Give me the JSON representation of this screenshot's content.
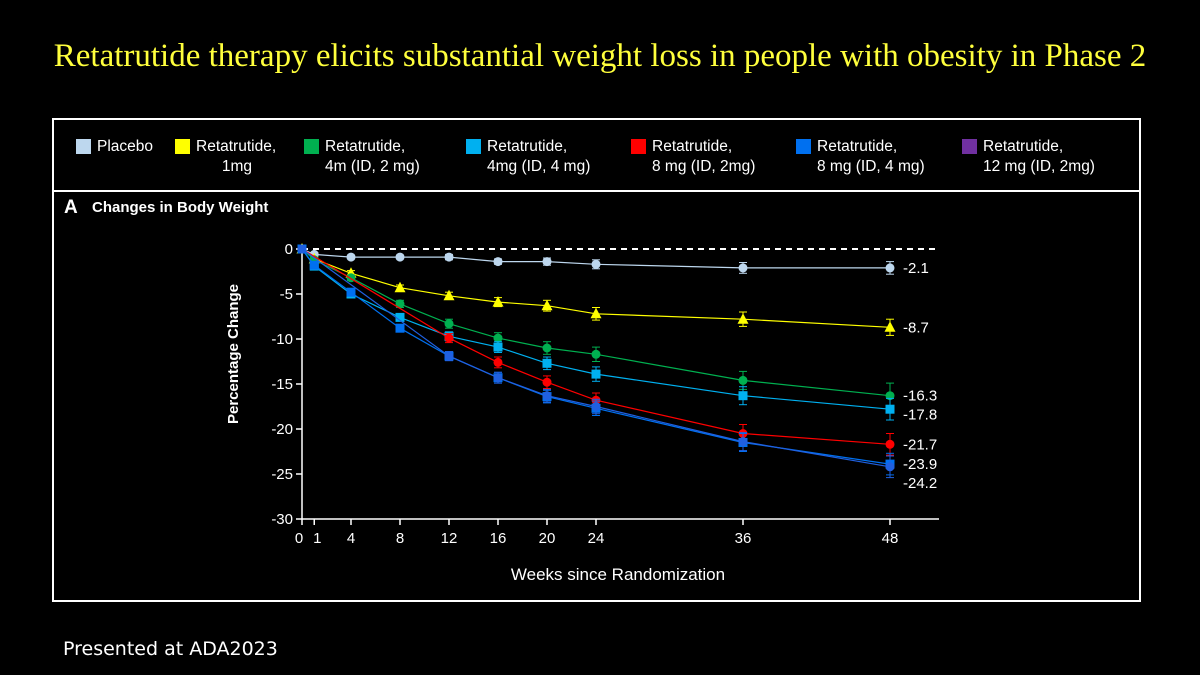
{
  "page": {
    "title": "Retatrutide therapy elicits substantial weight loss in people with obesity in Phase 2",
    "footer": "Presented at ADA2023"
  },
  "legend": [
    {
      "label": "Placebo",
      "color": "#bdd7ee"
    },
    {
      "label": "Retatrutide,\n      1mg",
      "color": "#ffff00"
    },
    {
      "label": "Retatrutide,\n4m (ID, 2 mg)",
      "color": "#00b050"
    },
    {
      "label": "Retatrutide,\n4mg (ID, 4 mg)",
      "color": "#00b0f0"
    },
    {
      "label": "Retatrutide,\n8 mg (ID, 2mg)",
      "color": "#ff0000"
    },
    {
      "label": "Retatrutide,\n8 mg (ID, 4 mg)",
      "color": "#0070f0"
    },
    {
      "label": "Retatrutide,\n12 mg (ID, 2mg)",
      "color": "#7030a0"
    }
  ],
  "chart_data": {
    "type": "line",
    "panel_letter": "A",
    "title": "Changes in Body Weight",
    "xlabel": "Weeks since Randomization",
    "ylabel": "Percentage Change",
    "xlim": [
      0,
      52
    ],
    "ylim": [
      -30,
      0
    ],
    "xticks": [
      0,
      1,
      4,
      8,
      12,
      16,
      20,
      24,
      36,
      48
    ],
    "xtick_labels": [
      "0",
      "1",
      "4",
      "8",
      "12",
      "16",
      "20",
      "24",
      "36",
      "48"
    ],
    "yticks": [
      0,
      -5,
      -10,
      -15,
      -20,
      -25,
      -30
    ],
    "ytick_labels": [
      "0",
      "-5",
      "-10",
      "-15",
      "-20",
      "-25",
      "-30"
    ],
    "reference_line": 0,
    "series": [
      {
        "name": "Placebo",
        "color": "#bdd7ee",
        "marker": "circle",
        "x": [
          0,
          1,
          4,
          8,
          12,
          16,
          20,
          24,
          36,
          48
        ],
        "values": [
          0,
          -0.6,
          -0.9,
          -0.9,
          -0.9,
          -1.4,
          -1.4,
          -1.7,
          -2.1,
          -2.1
        ],
        "err": [
          0,
          0.2,
          0.2,
          0.2,
          0.3,
          0.3,
          0.4,
          0.5,
          0.6,
          0.7
        ],
        "end_label": "-2.1"
      },
      {
        "name": "Retatrutide, 1mg",
        "color": "#ffff00",
        "marker": "triangle",
        "x": [
          0,
          1,
          4,
          8,
          12,
          16,
          20,
          24,
          36,
          48
        ],
        "values": [
          0,
          -1.1,
          -2.7,
          -4.3,
          -5.2,
          -5.9,
          -6.3,
          -7.2,
          -7.8,
          -8.7
        ],
        "err": [
          0,
          0.2,
          0.3,
          0.3,
          0.4,
          0.5,
          0.6,
          0.7,
          0.8,
          0.9
        ],
        "end_label": "-8.7"
      },
      {
        "name": "Retatrutide, 4m (ID, 2 mg)",
        "color": "#00b050",
        "marker": "circle",
        "x": [
          0,
          1,
          4,
          8,
          12,
          16,
          20,
          24,
          36,
          48
        ],
        "values": [
          0,
          -1.2,
          -3.2,
          -6.1,
          -8.3,
          -9.9,
          -11.0,
          -11.7,
          -14.6,
          -16.3
        ],
        "err": [
          0,
          0.2,
          0.3,
          0.4,
          0.5,
          0.6,
          0.7,
          0.8,
          1.0,
          1.4
        ],
        "end_label": "-16.3"
      },
      {
        "name": "Retatrutide, 4mg (ID, 4 mg)",
        "color": "#00b0f0",
        "marker": "square",
        "x": [
          0,
          1,
          4,
          8,
          12,
          16,
          20,
          24,
          36,
          48
        ],
        "values": [
          0,
          -1.9,
          -5.0,
          -7.6,
          -9.7,
          -10.9,
          -12.7,
          -13.9,
          -16.3,
          -17.8
        ],
        "err": [
          0,
          0.2,
          0.3,
          0.4,
          0.5,
          0.6,
          0.7,
          0.8,
          1.0,
          1.2
        ],
        "end_label": "-17.8"
      },
      {
        "name": "Retatrutide, 8 mg (ID, 2mg)",
        "color": "#ff0000",
        "marker": "circle",
        "x": [
          0,
          12,
          16,
          20,
          24,
          36,
          48
        ],
        "values": [
          0,
          -9.9,
          -12.6,
          -14.8,
          -16.8,
          -20.5,
          -21.7
        ],
        "err": [
          0,
          0.5,
          0.6,
          0.7,
          0.8,
          1.0,
          1.2
        ],
        "end_label": "-21.7"
      },
      {
        "name": "Retatrutide, 8 mg (ID, 4 mg)",
        "color": "#0070f0",
        "marker": "square",
        "x": [
          0,
          1,
          4,
          8,
          12,
          16,
          20,
          24,
          36,
          48
        ],
        "values": [
          0,
          -1.8,
          -4.8,
          -8.8,
          -11.9,
          -14.3,
          -16.4,
          -17.7,
          -21.5,
          -23.9
        ],
        "err": [
          0,
          0.2,
          0.3,
          0.4,
          0.5,
          0.6,
          0.7,
          0.8,
          1.0,
          1.2
        ],
        "end_label": "-23.9"
      },
      {
        "name": "Retatrutide, 12 mg (ID, 2mg)",
        "color": "#2060e0",
        "marker": "circle",
        "x": [
          0,
          12,
          16,
          20,
          24,
          36,
          48
        ],
        "values": [
          0,
          -11.9,
          -14.3,
          -16.3,
          -17.5,
          -21.4,
          -24.2
        ],
        "err": [
          0,
          0.5,
          0.6,
          0.7,
          0.8,
          1.0,
          1.2
        ],
        "end_label": "-24.2"
      }
    ]
  }
}
